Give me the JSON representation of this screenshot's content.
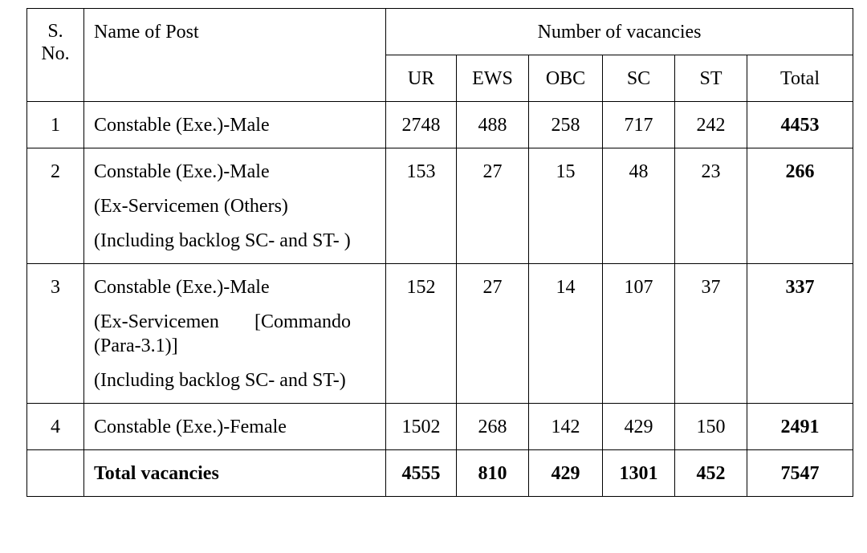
{
  "table": {
    "header": {
      "sno": [
        "S.",
        "No."
      ],
      "name": "Name of Post",
      "vacancies": "Number of vacancies",
      "columns": [
        "UR",
        "EWS",
        "OBC",
        "SC",
        "ST",
        "Total"
      ]
    },
    "rows": [
      {
        "sno": 1,
        "post": [
          "Constable (Exe.)-Male"
        ],
        "values": [
          2748,
          488,
          258,
          717,
          242,
          4453
        ]
      },
      {
        "sno": 2,
        "post": [
          "Constable (Exe.)-Male",
          "(Ex-Servicemen (Others)",
          "(Including backlog SC- and ST- )"
        ],
        "values": [
          153,
          27,
          15,
          48,
          23,
          266
        ]
      },
      {
        "sno": 3,
        "post": [
          "Constable (Exe.)-Male",
          "(Ex-Servicemen [Commando (Para-3.1)]",
          "(Including backlog SC- and ST-)"
        ],
        "values": [
          152,
          27,
          14,
          107,
          37,
          337
        ]
      },
      {
        "sno": 4,
        "post": [
          "Constable (Exe.)-Female"
        ],
        "values": [
          1502,
          268,
          142,
          429,
          150,
          2491
        ]
      }
    ],
    "total": {
      "label": "Total vacancies",
      "values": [
        4555,
        810,
        429,
        1301,
        452,
        7547
      ]
    }
  }
}
